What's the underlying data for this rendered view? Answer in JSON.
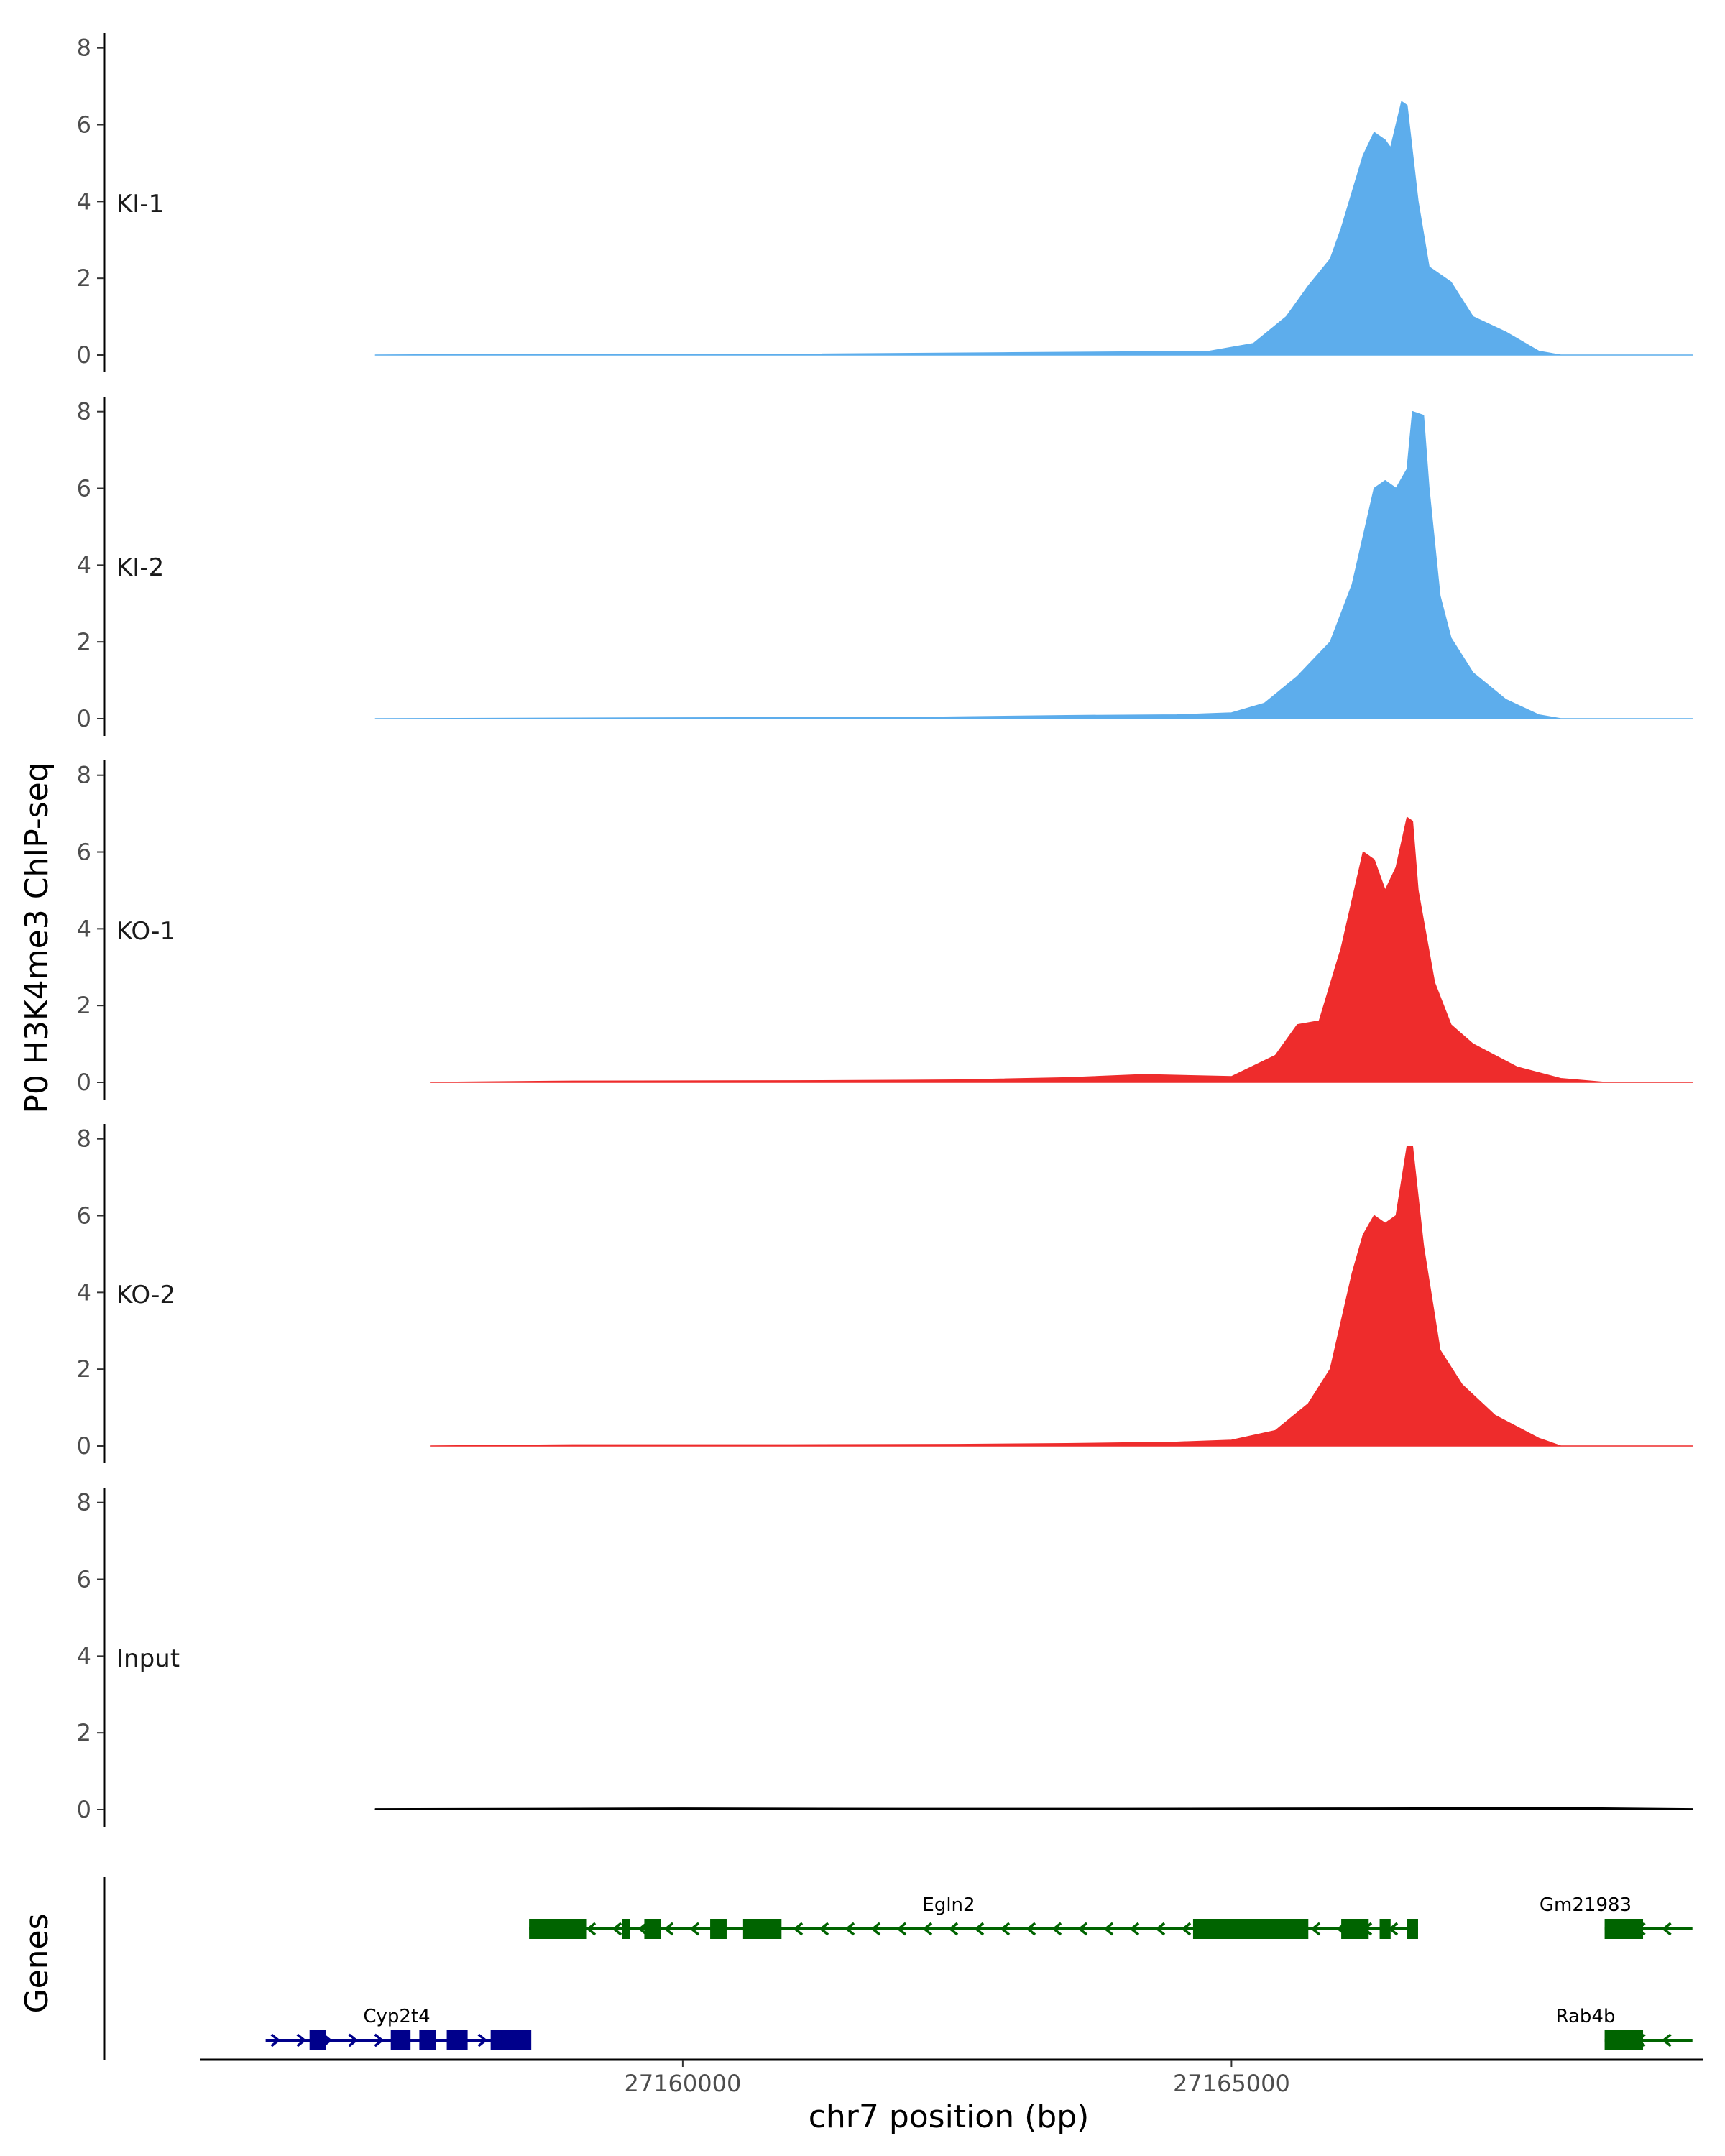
{
  "chart_data": {
    "type": "area",
    "ylabel": "P0 H3K4me3 ChIP-seq",
    "xlabel": "chr7 position (bp)",
    "xlim": [
      27155600,
      27169300
    ],
    "ylim": [
      0,
      8.5
    ],
    "y_ticks": [
      "0",
      "2",
      "4",
      "6",
      "8"
    ],
    "x_ticks": [
      {
        "value": 27160000,
        "label": "27160000"
      },
      {
        "value": 27165000,
        "label": "27165000"
      }
    ],
    "tracks": [
      {
        "name": "KI-1",
        "color": "#5DADEC",
        "x": [
          27157200,
          27159000,
          27161000,
          27163000,
          27164000,
          27164800,
          27165200,
          27165500,
          27165700,
          27165900,
          27166000,
          27166200,
          27166300,
          27166400,
          27166450,
          27166550,
          27166600,
          27166700,
          27166800,
          27167000,
          27167200,
          27167500,
          27167800,
          27168000,
          27169200
        ],
        "values": [
          0,
          0.02,
          0.02,
          0.06,
          0.08,
          0.1,
          0.3,
          1.0,
          1.8,
          2.5,
          3.3,
          5.2,
          5.8,
          5.6,
          5.4,
          6.6,
          6.5,
          4.0,
          2.3,
          1.9,
          1.0,
          0.6,
          0.1,
          0,
          0
        ]
      },
      {
        "name": "KI-2",
        "color": "#5DADEC",
        "x": [
          27157200,
          27160000,
          27162000,
          27163500,
          27164500,
          27165000,
          27165300,
          27165600,
          27165900,
          27166100,
          27166300,
          27166400,
          27166500,
          27166600,
          27166650,
          27166750,
          27166800,
          27166900,
          27167000,
          27167200,
          27167500,
          27167800,
          27168000,
          27169200
        ],
        "values": [
          0,
          0.02,
          0.03,
          0.08,
          0.1,
          0.15,
          0.4,
          1.1,
          2.0,
          3.5,
          6.0,
          6.2,
          6.0,
          6.5,
          8.0,
          7.9,
          6.0,
          3.2,
          2.1,
          1.2,
          0.5,
          0.1,
          0,
          0
        ]
      },
      {
        "name": "KO-1",
        "color": "#EE2C2C",
        "x": [
          27157700,
          27159000,
          27161000,
          27162500,
          27163500,
          27164200,
          27165000,
          27165400,
          27165600,
          27165800,
          27166000,
          27166200,
          27166300,
          27166400,
          27166500,
          27166600,
          27166650,
          27166700,
          27166850,
          27167000,
          27167200,
          27167600,
          27168000,
          27168400,
          27169200
        ],
        "values": [
          0,
          0.03,
          0.04,
          0.06,
          0.12,
          0.2,
          0.15,
          0.7,
          1.5,
          1.6,
          3.5,
          6.0,
          5.8,
          5.0,
          5.6,
          6.9,
          6.8,
          5.0,
          2.6,
          1.5,
          1.0,
          0.4,
          0.1,
          0,
          0
        ]
      },
      {
        "name": "KO-2",
        "color": "#EE2C2C",
        "x": [
          27157700,
          27159000,
          27161000,
          27162500,
          27163500,
          27164500,
          27165000,
          27165400,
          27165700,
          27165900,
          27166100,
          27166200,
          27166300,
          27166400,
          27166500,
          27166600,
          27166650,
          27166750,
          27166900,
          27167100,
          27167400,
          27167800,
          27168000,
          27169200
        ],
        "values": [
          0,
          0.03,
          0.03,
          0.04,
          0.06,
          0.1,
          0.15,
          0.4,
          1.1,
          2.0,
          4.5,
          5.5,
          6.0,
          5.8,
          6.0,
          7.8,
          7.8,
          5.2,
          2.5,
          1.6,
          0.8,
          0.2,
          0,
          0
        ]
      },
      {
        "name": "Input",
        "color": "#000000",
        "x": [
          27157200,
          27160000,
          27162000,
          27164000,
          27166000,
          27168000,
          27169200
        ],
        "values": [
          0.02,
          0.04,
          0.03,
          0.03,
          0.04,
          0.05,
          0.02
        ]
      }
    ],
    "genes_label": "Genes",
    "genes": [
      {
        "name": "Egln2",
        "strand": "-",
        "color": "#006400",
        "row": 1,
        "start": 27158600,
        "end": 27166700,
        "exons": [
          [
            27158600,
            27159120
          ],
          [
            27159450,
            27159520
          ],
          [
            27159650,
            27159800
          ],
          [
            27160250,
            27160400
          ],
          [
            27160550,
            27160900
          ],
          [
            27164650,
            27165700
          ],
          [
            27166000,
            27166250
          ],
          [
            27166350,
            27166450
          ],
          [
            27166600,
            27166700
          ]
        ]
      },
      {
        "name": "Gm21983",
        "strand": "-",
        "color": "#006400",
        "row": 1,
        "start": 27168400,
        "end": 27169200,
        "exons": [
          [
            27168400,
            27168750
          ]
        ]
      },
      {
        "name": "Cyp2t4",
        "strand": "+",
        "color": "#00008B",
        "row": 2,
        "start": 27156200,
        "end": 27158600,
        "exons": [
          [
            27156600,
            27156750
          ],
          [
            27157340,
            27157520
          ],
          [
            27157600,
            27157750
          ],
          [
            27157850,
            27158040
          ],
          [
            27158250,
            27158380
          ],
          [
            27158350,
            27158620
          ]
        ]
      },
      {
        "name": "Rab4b",
        "strand": "-",
        "color": "#006400",
        "row": 2,
        "start": 27168400,
        "end": 27169200,
        "exons": [
          [
            27168400,
            27168750
          ]
        ]
      }
    ]
  }
}
